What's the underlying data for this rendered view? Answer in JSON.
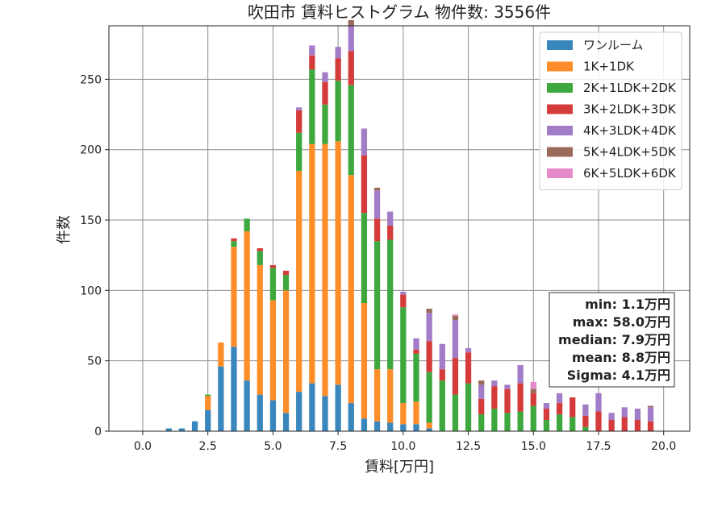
{
  "chart_data": {
    "type": "bar",
    "stacked": true,
    "title": "吹田市 賃料ヒストグラム 物件数: 3556件",
    "xlabel": "賃料[万円]",
    "ylabel": "件数",
    "xlim": [
      -1.3,
      21.0
    ],
    "ylim": [
      0,
      288
    ],
    "grid": true,
    "legend_position": "top-right",
    "x_ticks": [
      0,
      2.5,
      5,
      7.5,
      10,
      12.5,
      15,
      17.5,
      20
    ],
    "x_tick_labels": [
      "0.0",
      "2.5",
      "5.0",
      "7.5",
      "10.0",
      "12.5",
      "15.0",
      "17.5",
      "20.0"
    ],
    "y_ticks": [
      0,
      50,
      100,
      150,
      200,
      250
    ],
    "y_tick_labels": [
      "0",
      "50",
      "100",
      "150",
      "200",
      "250"
    ],
    "bin_width": 0.25,
    "x": [
      0.75,
      1.0,
      1.25,
      1.5,
      1.75,
      2.0,
      2.25,
      2.5,
      2.75,
      3.0,
      3.25,
      3.5,
      3.75,
      4.0,
      4.25,
      4.5,
      4.75,
      5.0,
      5.25,
      5.5,
      5.75,
      6.0,
      6.25,
      6.5,
      6.75,
      7.0,
      7.25,
      7.5,
      7.75,
      8.0,
      8.25,
      8.5,
      8.75,
      9.0,
      9.25,
      9.5,
      9.75,
      10.0,
      10.25,
      10.5,
      10.75,
      11.0,
      11.25,
      11.5,
      11.75,
      12.0,
      12.25,
      12.5,
      12.75,
      13.0,
      13.25,
      13.5,
      13.75,
      14.0,
      14.25,
      14.5,
      14.75,
      15.0,
      15.25,
      15.5,
      15.75,
      16.0,
      16.25,
      16.5,
      16.75,
      17.0,
      17.25,
      17.5,
      17.75,
      18.0,
      18.25,
      18.5,
      18.75,
      19.0,
      19.25,
      19.5,
      19.75
    ],
    "series": [
      {
        "name": "ワンルーム",
        "color": "#3a87bd",
        "values": [
          0,
          2,
          0,
          2,
          0,
          7,
          0,
          15,
          0,
          46,
          0,
          60,
          0,
          36,
          0,
          26,
          0,
          22,
          0,
          13,
          0,
          28,
          0,
          34,
          0,
          25,
          0,
          33,
          0,
          20,
          0,
          9,
          0,
          7,
          0,
          6,
          0,
          5,
          0,
          5,
          0,
          2,
          0,
          0,
          0,
          0,
          0,
          0,
          0,
          0,
          0,
          0,
          0,
          0,
          0,
          0,
          0,
          0,
          0,
          0,
          0,
          0,
          0,
          0,
          0,
          0,
          0,
          0,
          0,
          0,
          0,
          0,
          0,
          0,
          0,
          0,
          0
        ]
      },
      {
        "name": "1K+1DK",
        "color": "#ff8e2a",
        "values": [
          0,
          0,
          0,
          0,
          0,
          0,
          0,
          10,
          0,
          17,
          0,
          71,
          0,
          106,
          0,
          92,
          0,
          71,
          0,
          87,
          0,
          157,
          0,
          170,
          0,
          179,
          0,
          173,
          0,
          162,
          0,
          82,
          0,
          37,
          0,
          38,
          0,
          15,
          0,
          16,
          0,
          4,
          0,
          0,
          0,
          0,
          0,
          0,
          0,
          0,
          0,
          0,
          0,
          0,
          0,
          0,
          0,
          0,
          0,
          0,
          0,
          0,
          0,
          0,
          0,
          0,
          0,
          0,
          0,
          0,
          0,
          0,
          0,
          0,
          0,
          0,
          0
        ]
      },
      {
        "name": "2K+1LDK+2DK",
        "color": "#3ea83e",
        "values": [
          0,
          0,
          0,
          0,
          0,
          0,
          0,
          1,
          0,
          0,
          0,
          4,
          0,
          9,
          0,
          10,
          0,
          23,
          0,
          11,
          0,
          27,
          0,
          53,
          0,
          28,
          0,
          43,
          0,
          64,
          0,
          64,
          0,
          91,
          0,
          92,
          0,
          68,
          0,
          34,
          0,
          36,
          0,
          36,
          0,
          26,
          0,
          34,
          0,
          12,
          0,
          16,
          0,
          13,
          0,
          14,
          0,
          18,
          0,
          8,
          0,
          12,
          0,
          10,
          0,
          3,
          0,
          0,
          0,
          0,
          0,
          0,
          0,
          0,
          0,
          0,
          0
        ]
      },
      {
        "name": "3K+2LDK+3DK",
        "color": "#d53b3b",
        "values": [
          0,
          0,
          0,
          0,
          0,
          0,
          0,
          0,
          0,
          0,
          0,
          2,
          0,
          0,
          0,
          2,
          0,
          2,
          0,
          3,
          0,
          16,
          0,
          10,
          0,
          16,
          0,
          16,
          0,
          24,
          0,
          41,
          0,
          16,
          0,
          10,
          0,
          9,
          0,
          3,
          0,
          22,
          0,
          8,
          0,
          26,
          0,
          22,
          0,
          11,
          0,
          16,
          0,
          17,
          0,
          20,
          0,
          9,
          0,
          8,
          0,
          8,
          0,
          14,
          0,
          8,
          0,
          14,
          0,
          8,
          0,
          10,
          0,
          8,
          0,
          7,
          0
        ]
      },
      {
        "name": "4K+3LDK+4DK",
        "color": "#a27cc6",
        "values": [
          0,
          0,
          0,
          0,
          0,
          0,
          0,
          0,
          0,
          0,
          0,
          0,
          0,
          0,
          0,
          0,
          0,
          0,
          0,
          0,
          0,
          2,
          0,
          7,
          0,
          7,
          0,
          8,
          0,
          18,
          0,
          19,
          0,
          20,
          0,
          10,
          0,
          2,
          0,
          8,
          0,
          20,
          0,
          18,
          0,
          27,
          0,
          3,
          0,
          10,
          0,
          4,
          0,
          3,
          0,
          13,
          0,
          0,
          0,
          4,
          0,
          7,
          0,
          0,
          0,
          8,
          0,
          13,
          0,
          5,
          0,
          7,
          0,
          8,
          0,
          10,
          0
        ]
      },
      {
        "name": "5K+4LDK+5DK",
        "color": "#9a6a5b",
        "values": [
          0,
          0,
          0,
          0,
          0,
          0,
          0,
          0,
          0,
          0,
          0,
          0,
          0,
          0,
          0,
          0,
          0,
          0,
          0,
          0,
          0,
          0,
          0,
          0,
          0,
          0,
          0,
          0,
          0,
          4,
          0,
          0,
          0,
          2,
          0,
          0,
          0,
          0,
          0,
          0,
          0,
          3,
          0,
          0,
          0,
          3,
          0,
          0,
          0,
          3,
          0,
          0,
          0,
          0,
          0,
          0,
          0,
          3,
          0,
          0,
          0,
          0,
          0,
          0,
          0,
          0,
          0,
          0,
          0,
          0,
          0,
          0,
          0,
          0,
          0,
          1,
          0
        ]
      },
      {
        "name": "6K+5LDK+6DK",
        "color": "#e58ac9",
        "values": [
          0,
          0,
          0,
          0,
          0,
          0,
          0,
          0,
          0,
          0,
          0,
          0,
          0,
          0,
          0,
          0,
          0,
          0,
          0,
          0,
          0,
          0,
          0,
          0,
          0,
          0,
          0,
          0,
          0,
          0,
          0,
          0,
          0,
          0,
          0,
          0,
          0,
          0,
          0,
          0,
          0,
          0,
          0,
          0,
          0,
          1,
          0,
          0,
          0,
          0,
          0,
          0,
          0,
          0,
          0,
          0,
          0,
          5,
          0,
          0,
          0,
          0,
          0,
          0,
          0,
          0,
          0,
          0,
          0,
          0,
          0,
          0,
          0,
          0,
          0,
          0,
          0
        ]
      }
    ],
    "stats": [
      "min: 1.1万円",
      "max: 58.0万円",
      "median: 7.9万円",
      "mean: 8.8万円",
      "Sigma: 4.1万円"
    ]
  }
}
